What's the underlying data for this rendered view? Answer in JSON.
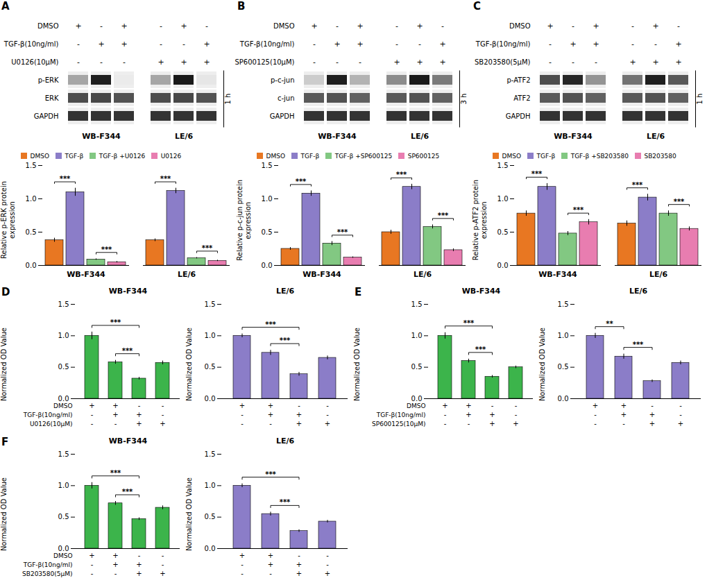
{
  "chart_data": [
    {
      "type": "blot",
      "panel_label": "A",
      "groups": [
        "WB-F344",
        "LE/6"
      ],
      "treatment_rows": [
        {
          "label": "DMSO",
          "values": [
            [
              "+",
              "-",
              "+"
            ],
            [
              "-",
              "+",
              "-"
            ]
          ]
        },
        {
          "label": "TGF-β(10ng/ml)",
          "values": [
            [
              "-",
              "+",
              "+"
            ],
            [
              "-",
              "-",
              "+"
            ]
          ]
        },
        {
          "label": "U0126(10μM)",
          "values": [
            [
              "-",
              "-",
              "-"
            ],
            [
              "+",
              "+",
              "+"
            ]
          ]
        }
      ],
      "bands": [
        {
          "name": "p-ERK",
          "values": [
            [
              0.35,
              0.88,
              0.08
            ],
            [
              0.35,
              0.9,
              0.1
            ]
          ]
        },
        {
          "name": "ERK",
          "values": [
            [
              0.7,
              0.72,
              0.68
            ],
            [
              0.7,
              0.72,
              0.68
            ]
          ]
        },
        {
          "name": "GAPDH",
          "values": [
            [
              0.8,
              0.8,
              0.8
            ],
            [
              0.8,
              0.8,
              0.8
            ]
          ]
        }
      ],
      "annotation": "1 h"
    },
    {
      "type": "blot",
      "panel_label": "B",
      "groups": [
        "WB-F344",
        "LE/6"
      ],
      "treatment_rows": [
        {
          "label": "DMSO",
          "values": [
            [
              "+",
              "-",
              "+"
            ],
            [
              "-",
              "+",
              "-"
            ]
          ]
        },
        {
          "label": "TGF-β(10ng/ml)",
          "values": [
            [
              "-",
              "+",
              "+"
            ],
            [
              "-",
              "-",
              "+"
            ]
          ]
        },
        {
          "label": "SP600125(10μM)",
          "values": [
            [
              "-",
              "-",
              "-"
            ],
            [
              "+",
              "+",
              "+"
            ]
          ]
        }
      ],
      "bands": [
        {
          "name": "p-c-jun",
          "values": [
            [
              0.2,
              0.88,
              0.3
            ],
            [
              0.45,
              0.9,
              0.52
            ]
          ]
        },
        {
          "name": "c-jun",
          "values": [
            [
              0.65,
              0.68,
              0.62
            ],
            [
              0.65,
              0.68,
              0.62
            ]
          ]
        },
        {
          "name": "GAPDH",
          "values": [
            [
              0.8,
              0.8,
              0.8
            ],
            [
              0.8,
              0.8,
              0.8
            ]
          ]
        }
      ],
      "annotation": "3 h"
    },
    {
      "type": "blot",
      "panel_label": "C",
      "groups": [
        "WB-F344",
        "LE/6"
      ],
      "treatment_rows": [
        {
          "label": "DMSO",
          "values": [
            [
              "+",
              "-",
              "+"
            ],
            [
              "-",
              "+",
              "-"
            ]
          ]
        },
        {
          "label": "TGF-β(10ng/ml)",
          "values": [
            [
              "-",
              "+",
              "+"
            ],
            [
              "-",
              "-",
              "+"
            ]
          ]
        },
        {
          "label": "SB203580(5μM)",
          "values": [
            [
              "-",
              "-",
              "-"
            ],
            [
              "+",
              "+",
              "+"
            ]
          ]
        }
      ],
      "bands": [
        {
          "name": "p-ATF2",
          "values": [
            [
              0.7,
              0.85,
              0.42
            ],
            [
              0.55,
              0.88,
              0.65
            ]
          ]
        },
        {
          "name": "ATF2",
          "values": [
            [
              0.65,
              0.68,
              0.62
            ],
            [
              0.65,
              0.68,
              0.62
            ]
          ]
        },
        {
          "name": "GAPDH",
          "values": [
            [
              0.8,
              0.8,
              0.8
            ],
            [
              0.8,
              0.8,
              0.8
            ]
          ]
        }
      ],
      "annotation": "1 h"
    },
    {
      "type": "bar",
      "ylabel": "Relative p-ERK protein\nexpression",
      "categories": [
        "WB-F344",
        "LE/6"
      ],
      "series": [
        {
          "name": "DMSO",
          "color": "#E87722",
          "values": [
            0.38,
            0.38
          ],
          "errors": [
            0.03,
            0.02
          ]
        },
        {
          "name": "TGF-β",
          "color": "#8B7DC8",
          "values": [
            1.1,
            1.12
          ],
          "errors": [
            0.06,
            0.04
          ]
        },
        {
          "name": "TGF-β +U0126",
          "color": "#82C882",
          "values": [
            0.09,
            0.11
          ],
          "errors": [
            0.01,
            0.01
          ]
        },
        {
          "name": "U0126",
          "color": "#E87DB0",
          "values": [
            0.05,
            0.07
          ],
          "errors": [
            0.01,
            0.01
          ]
        }
      ],
      "ylim": [
        0,
        1.5
      ],
      "yticks": [
        {
          "value": 0,
          "label": "0.0"
        },
        0.5,
        {
          "value": 1,
          "label": "1.0"
        },
        1.5
      ],
      "legend": "top",
      "annotations": [
        {
          "category": "WB-F344",
          "from": "DMSO",
          "to": "TGF-β",
          "text": "***"
        },
        {
          "category": "WB-F344",
          "from": "TGF-β +U0126",
          "to": "U0126",
          "text": "***"
        },
        {
          "category": "LE/6",
          "from": "DMSO",
          "to": "TGF-β",
          "text": "***"
        },
        {
          "category": "LE/6",
          "from": "TGF-β +U0126",
          "to": "U0126",
          "text": "***"
        }
      ]
    },
    {
      "type": "bar",
      "ylabel": "Relative p-c-jun protein\nexpression",
      "categories": [
        "WB-F344",
        "LE/6"
      ],
      "series": [
        {
          "name": "DMSO",
          "color": "#E87722",
          "values": [
            0.25,
            0.5
          ],
          "errors": [
            0.02,
            0.03
          ]
        },
        {
          "name": "TGF-β",
          "color": "#8B7DC8",
          "values": [
            1.08,
            1.18
          ],
          "errors": [
            0.04,
            0.04
          ]
        },
        {
          "name": "TGF-β +SP600125",
          "color": "#82C882",
          "values": [
            0.33,
            0.58
          ],
          "errors": [
            0.03,
            0.03
          ]
        },
        {
          "name": "SP600125",
          "color": "#E87DB0",
          "values": [
            0.12,
            0.23
          ],
          "errors": [
            0.01,
            0.02
          ]
        }
      ],
      "ylim": [
        0,
        1.5
      ],
      "yticks": [
        {
          "value": 0,
          "label": "0.0"
        },
        0.5,
        {
          "value": 1,
          "label": "1.0"
        },
        1.5
      ],
      "legend": "top",
      "annotations": [
        {
          "category": "WB-F344",
          "from": "DMSO",
          "to": "TGF-β",
          "text": "***"
        },
        {
          "category": "WB-F344",
          "from": "TGF-β +SP600125",
          "to": "SP600125",
          "text": "***"
        },
        {
          "category": "LE/6",
          "from": "DMSO",
          "to": "TGF-β",
          "text": "***"
        },
        {
          "category": "LE/6",
          "from": "TGF-β +SP600125",
          "to": "SP600125",
          "text": "***"
        }
      ]
    },
    {
      "type": "bar",
      "ylabel": "Relative p-ATF2 protein\nexpression",
      "categories": [
        "WB-F344",
        "LE/6"
      ],
      "series": [
        {
          "name": "DMSO",
          "color": "#E87722",
          "values": [
            0.78,
            0.63
          ],
          "errors": [
            0.04,
            0.04
          ]
        },
        {
          "name": "TGF-β",
          "color": "#8B7DC8",
          "values": [
            1.18,
            1.02
          ],
          "errors": [
            0.05,
            0.05
          ]
        },
        {
          "name": "TGF-β +SB203580",
          "color": "#82C882",
          "values": [
            0.48,
            0.78
          ],
          "errors": [
            0.03,
            0.04
          ]
        },
        {
          "name": "SB203580",
          "color": "#E87DB0",
          "values": [
            0.65,
            0.55
          ],
          "errors": [
            0.04,
            0.03
          ]
        }
      ],
      "ylim": [
        0,
        1.5
      ],
      "yticks": [
        {
          "value": 0,
          "label": "0.0"
        },
        0.5,
        {
          "value": 1,
          "label": "1.0"
        },
        1.5
      ],
      "legend": "top",
      "annotations": [
        {
          "category": "WB-F344",
          "from": "DMSO",
          "to": "TGF-β",
          "text": "***"
        },
        {
          "category": "WB-F344",
          "from": "TGF-β +SB203580",
          "to": "SB203580",
          "text": "***"
        },
        {
          "category": "LE/6",
          "from": "DMSO",
          "to": "TGF-β",
          "text": "***"
        },
        {
          "category": "LE/6",
          "from": "TGF-β +SB203580",
          "to": "SB203580",
          "text": "***"
        }
      ]
    },
    {
      "type": "bar",
      "panel_label": "D",
      "title": "WB-F344",
      "ylabel": "Normalized OD Value",
      "values": [
        1.0,
        0.58,
        0.32,
        0.57
      ],
      "errors": [
        0.06,
        0.03,
        0.02,
        0.03
      ],
      "color": "#3CB44B",
      "ylim": [
        0,
        1.5
      ],
      "yticks": [
        {
          "value": 0,
          "label": "0.0"
        },
        0.5,
        {
          "value": 1,
          "label": "1.0"
        },
        1.5
      ],
      "tick_labels": "y",
      "treatment_rows": [
        {
          "label": "DMSO",
          "values": [
            "+",
            "+",
            "-",
            "-"
          ]
        },
        {
          "label": "TGF-β(10ng/ml)",
          "values": [
            "-",
            "+",
            "+",
            "-"
          ]
        },
        {
          "label": "U0126(10μM)",
          "values": [
            "-",
            "-",
            "+",
            "+"
          ]
        }
      ],
      "annotations": [
        {
          "from": 0,
          "to": 2,
          "text": "***"
        },
        {
          "from": 1,
          "to": 2,
          "text": "***"
        }
      ]
    },
    {
      "type": "bar",
      "title": "LE/6",
      "ylabel": "Normalized OD Value",
      "values": [
        1.0,
        0.73,
        0.39,
        0.65
      ],
      "errors": [
        0.03,
        0.04,
        0.03,
        0.03
      ],
      "color": "#8B7DC8",
      "ylim": [
        0,
        1.5
      ],
      "yticks": [
        {
          "value": 0,
          "label": "0.0"
        },
        0.5,
        {
          "value": 1,
          "label": "1.0"
        },
        1.5
      ],
      "tick_labels": "y",
      "treatment_rows": [
        {
          "values": [
            "+",
            "+",
            "-",
            "-"
          ]
        },
        {
          "values": [
            "-",
            "+",
            "+",
            "-"
          ]
        },
        {
          "values": [
            "-",
            "-",
            "+",
            "+"
          ]
        }
      ],
      "annotations": [
        {
          "from": 0,
          "to": 2,
          "text": "***"
        },
        {
          "from": 1,
          "to": 2,
          "text": "***"
        }
      ]
    },
    {
      "type": "bar",
      "panel_label": "E",
      "title": "WB-F344",
      "ylabel": "Normalized OD Value",
      "values": [
        1.0,
        0.6,
        0.35,
        0.5
      ],
      "errors": [
        0.05,
        0.03,
        0.02,
        0.02
      ],
      "color": "#3CB44B",
      "ylim": [
        0,
        1.5
      ],
      "yticks": [
        {
          "value": 0,
          "label": "0.0"
        },
        0.5,
        {
          "value": 1,
          "label": "1.0"
        },
        1.5
      ],
      "tick_labels": "y",
      "treatment_rows": [
        {
          "label": "DMSO",
          "values": [
            "+",
            "+",
            "-",
            "-"
          ]
        },
        {
          "label": "TGF-β(10ng/ml)",
          "values": [
            "-",
            "+",
            "+",
            "-"
          ]
        },
        {
          "label": "SP600125(10μM)",
          "values": [
            "-",
            "-",
            "+",
            "+"
          ]
        }
      ],
      "annotations": [
        {
          "from": 0,
          "to": 2,
          "text": "***"
        },
        {
          "from": 1,
          "to": 2,
          "text": "***"
        }
      ]
    },
    {
      "type": "bar",
      "title": "LE/6",
      "ylabel": "Normalized OD Value",
      "values": [
        1.0,
        0.67,
        0.28,
        0.57
      ],
      "errors": [
        0.04,
        0.04,
        0.02,
        0.03
      ],
      "color": "#8B7DC8",
      "ylim": [
        0,
        1.5
      ],
      "yticks": [
        {
          "value": 0,
          "label": "0.0"
        },
        0.5,
        {
          "value": 1,
          "label": "1.0"
        },
        1.5
      ],
      "tick_labels": "y",
      "treatment_rows": [
        {
          "values": [
            "+",
            "+",
            "-",
            "-"
          ]
        },
        {
          "values": [
            "-",
            "+",
            "+",
            "-"
          ]
        },
        {
          "values": [
            "-",
            "-",
            "+",
            "+"
          ]
        }
      ],
      "annotations": [
        {
          "from": 0,
          "to": 1,
          "text": "**"
        },
        {
          "from": 1,
          "to": 2,
          "text": "***"
        }
      ]
    },
    {
      "type": "bar",
      "panel_label": "F",
      "title": "WB-F344",
      "ylabel": "Normalized OD Value",
      "values": [
        1.0,
        0.72,
        0.47,
        0.65
      ],
      "errors": [
        0.05,
        0.03,
        0.02,
        0.03
      ],
      "color": "#3CB44B",
      "ylim": [
        0,
        1.5
      ],
      "yticks": [
        {
          "value": 0,
          "label": "0.0"
        },
        0.5,
        {
          "value": 1,
          "label": "1.0"
        },
        1.5
      ],
      "tick_labels": "y",
      "treatment_rows": [
        {
          "label": "DMSO",
          "values": [
            "+",
            "+",
            "-",
            "-"
          ]
        },
        {
          "label": "TGF-β(10ng/ml)",
          "values": [
            "-",
            "+",
            "+",
            "-"
          ]
        },
        {
          "label": "SB203580(5μM)",
          "values": [
            "-",
            "-",
            "+",
            "+"
          ]
        }
      ],
      "annotations": [
        {
          "from": 0,
          "to": 2,
          "text": "***"
        },
        {
          "from": 1,
          "to": 2,
          "text": "***"
        }
      ]
    },
    {
      "type": "bar",
      "title": "LE/6",
      "ylabel": "Normalized OD Value",
      "values": [
        1.0,
        0.55,
        0.28,
        0.43
      ],
      "errors": [
        0.03,
        0.03,
        0.02,
        0.02
      ],
      "color": "#8B7DC8",
      "ylim": [
        0,
        1.5
      ],
      "yticks": [
        {
          "value": 0,
          "label": "0.0"
        },
        0.5,
        {
          "value": 1,
          "label": "1.0"
        },
        1.5
      ],
      "tick_labels": "y",
      "treatment_rows": [
        {
          "values": [
            "+",
            "+",
            "-",
            "-"
          ]
        },
        {
          "values": [
            "-",
            "+",
            "+",
            "-"
          ]
        },
        {
          "values": [
            "-",
            "-",
            "+",
            "+"
          ]
        }
      ],
      "annotations": [
        {
          "from": 0,
          "to": 2,
          "text": "***"
        },
        {
          "from": 1,
          "to": 2,
          "text": "***"
        }
      ]
    }
  ]
}
